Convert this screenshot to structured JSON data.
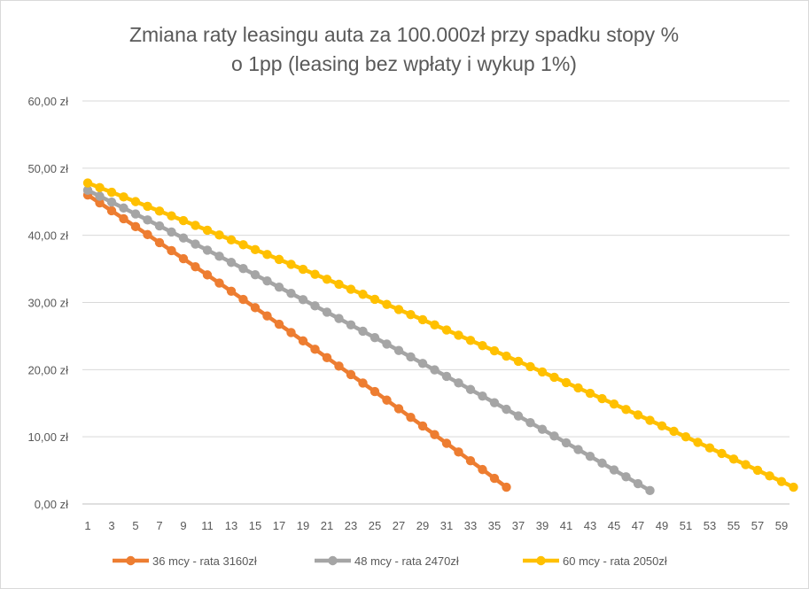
{
  "chart_data": {
    "type": "line",
    "title": "Zmiana raty leasingu auta za 100.000zł przy spadku stopy % o 1pp (leasing bez wpłaty i wykup 1%)",
    "title_lines": [
      "Zmiana raty leasingu auta za 100.000zł przy spadku stopy %",
      "o 1pp (leasing bez wpłaty i wykup 1%)"
    ],
    "xlabel": "",
    "ylabel": "",
    "ylim": [
      0,
      60
    ],
    "xlim": [
      1,
      59
    ],
    "y_ticks": [
      "0,00 zł",
      "10,00 zł",
      "20,00 zł",
      "30,00 zł",
      "40,00 zł",
      "50,00 zł",
      "60,00 zł"
    ],
    "x_ticks": [
      "1",
      "3",
      "5",
      "7",
      "9",
      "11",
      "13",
      "15",
      "17",
      "19",
      "21",
      "23",
      "25",
      "27",
      "29",
      "31",
      "33",
      "35",
      "37",
      "39",
      "41",
      "43",
      "45",
      "47",
      "49",
      "51",
      "53",
      "55",
      "57",
      "59"
    ],
    "grid": true,
    "legend_position": "bottom",
    "series": [
      {
        "name": "36 mcy - rata 3160zł",
        "color": "#ED7D31",
        "n": 36,
        "start": 46.0,
        "end": 2.5,
        "curve": 0.06
      },
      {
        "name": "48 mcy - rata 2470zł",
        "color": "#A5A5A5",
        "n": 48,
        "start": 46.7,
        "end": 2.0,
        "curve": 0.08
      },
      {
        "name": "60 mcy - rata 2050zł",
        "color": "#FFC000",
        "n": 60,
        "start": 47.8,
        "end": 2.5,
        "curve": 0.1
      }
    ]
  }
}
